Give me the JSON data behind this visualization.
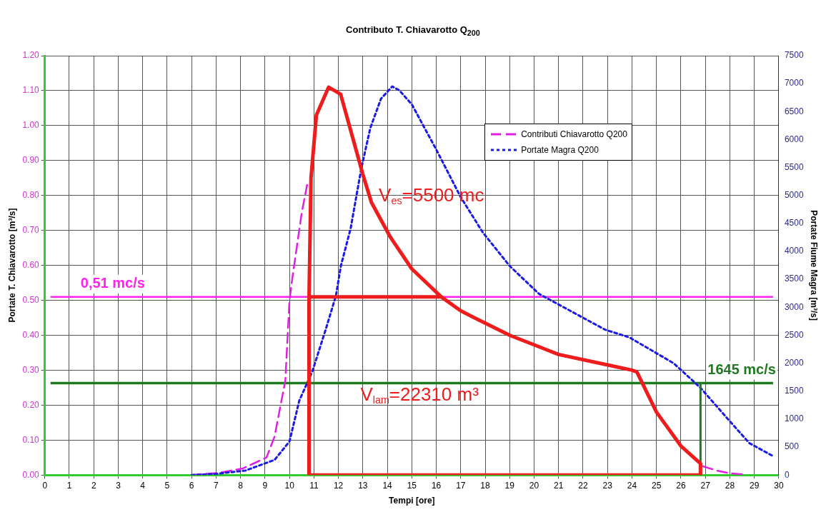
{
  "chart_data": {
    "type": "line",
    "title": "Contributo T. Chiavarotto Q$_{200}$",
    "xlabel": "Tempi [ore]",
    "ylabel": "Portate T. Chiavarotto [m³/s]",
    "y2label": "Portate Fiume Magra [m³/s]",
    "xlim": [
      0,
      30
    ],
    "xticks": [
      0,
      1,
      2,
      3,
      4,
      5,
      6,
      7,
      8,
      9,
      10,
      11,
      12,
      13,
      14,
      15,
      16,
      17,
      18,
      19,
      20,
      21,
      22,
      23,
      24,
      25,
      26,
      27,
      28,
      29,
      30
    ],
    "ylim": [
      0,
      1.2
    ],
    "yticks": [
      {
        "value": 0,
        "label": "0.00"
      },
      {
        "value": 0.1,
        "label": "0.10"
      },
      {
        "value": 0.2,
        "label": "0.20"
      },
      {
        "value": 0.3,
        "label": "0.30"
      },
      {
        "value": 0.4,
        "label": "0.40"
      },
      {
        "value": 0.5,
        "label": "0.50"
      },
      {
        "value": 0.6,
        "label": "0.60"
      },
      {
        "value": 0.7,
        "label": "0.70"
      },
      {
        "value": 0.8,
        "label": "0.80"
      },
      {
        "value": 0.9,
        "label": "0.90"
      },
      {
        "value": 1.0,
        "label": "1.00"
      },
      {
        "value": 1.1,
        "label": "1.10"
      },
      {
        "value": 1.2,
        "label": "1.20"
      }
    ],
    "y2lim": [
      0,
      7500
    ],
    "y2ticks": [
      0,
      500,
      1000,
      1500,
      2000,
      2500,
      3000,
      3500,
      4000,
      4500,
      5000,
      5500,
      6000,
      6500,
      7000,
      7500
    ],
    "grid": true,
    "legend": "top right",
    "marker": "none",
    "series": [
      {
        "name": "Contributi Chiavarotto Q200",
        "type": "line",
        "color": "#e020e0",
        "line_style": "dashed",
        "x": [
          6,
          7.1,
          8.1,
          9.06,
          9.39,
          9.83,
          10.0,
          10.11,
          10.5,
          10.72,
          10.8,
          26.9,
          27.5,
          28,
          28.5
        ],
        "values": [
          0,
          0.006,
          0.019,
          0.05,
          0.11,
          0.27,
          0.5,
          0.56,
          0.75,
          0.83,
          null,
          0.025,
          0.012,
          0.005,
          0.002
        ]
      },
      {
        "name": "Portate Magra Q200",
        "type": "line",
        "color": "#1a1ae6",
        "line_style": "dotted",
        "axis": "y2",
        "x": [
          6,
          7,
          8.2,
          9.39,
          10,
          10.4,
          10.94,
          11.5,
          11.9,
          12.1,
          12.5,
          12.93,
          13.3,
          13.74,
          14.2,
          14.49,
          15,
          16,
          17,
          17.9,
          19,
          20.2,
          21,
          22.9,
          23.9,
          25.7,
          26.8,
          27.9,
          28.8,
          29.8
        ],
        "values": [
          0,
          20,
          80,
          270,
          600,
          1330,
          1860,
          2630,
          3210,
          3740,
          4410,
          5470,
          6200,
          6730,
          6950,
          6880,
          6630,
          5820,
          4970,
          4340,
          3740,
          3240,
          3050,
          2600,
          2460,
          2000,
          1560,
          1010,
          570,
          330
        ]
      },
      {
        "type": "line",
        "color": "#1e7a1e",
        "line_style": "solid",
        "axis": "y2",
        "x": [
          26.8,
          26.8
        ],
        "values": [
          0,
          1645
        ]
      },
      {
        "type": "line",
        "color": "#ee1c1c",
        "line_style": "solid",
        "x": [
          16.2,
          10.8,
          10.8,
          26.8,
          26.8,
          26,
          25,
          24.2,
          24,
          23,
          21,
          19,
          17.5,
          17,
          16.2,
          15,
          14.13,
          13.35,
          13,
          12.09,
          11.6,
          11.1,
          10.88,
          10.8
        ],
        "values": [
          0.51,
          0.51,
          0,
          0,
          0.033,
          0.083,
          0.18,
          0.295,
          0.3,
          0.315,
          0.345,
          0.4,
          0.452,
          0.47,
          0.51,
          0.59,
          0.68,
          0.78,
          0.86,
          1.09,
          1.11,
          1.03,
          0.85,
          0.51
        ]
      }
    ],
    "ref_lines": [
      {
        "axis": "y",
        "value": 0.51,
        "label": "0,51 mc/s",
        "color": "#ff22ee"
      },
      {
        "axis": "y2",
        "value": 1645,
        "label": "1645 mc/s",
        "color": "#1e7a1e"
      }
    ],
    "annotations": [
      "V$_{es}$=5500 mc",
      "V$_{lam}$=22310 m³"
    ]
  }
}
